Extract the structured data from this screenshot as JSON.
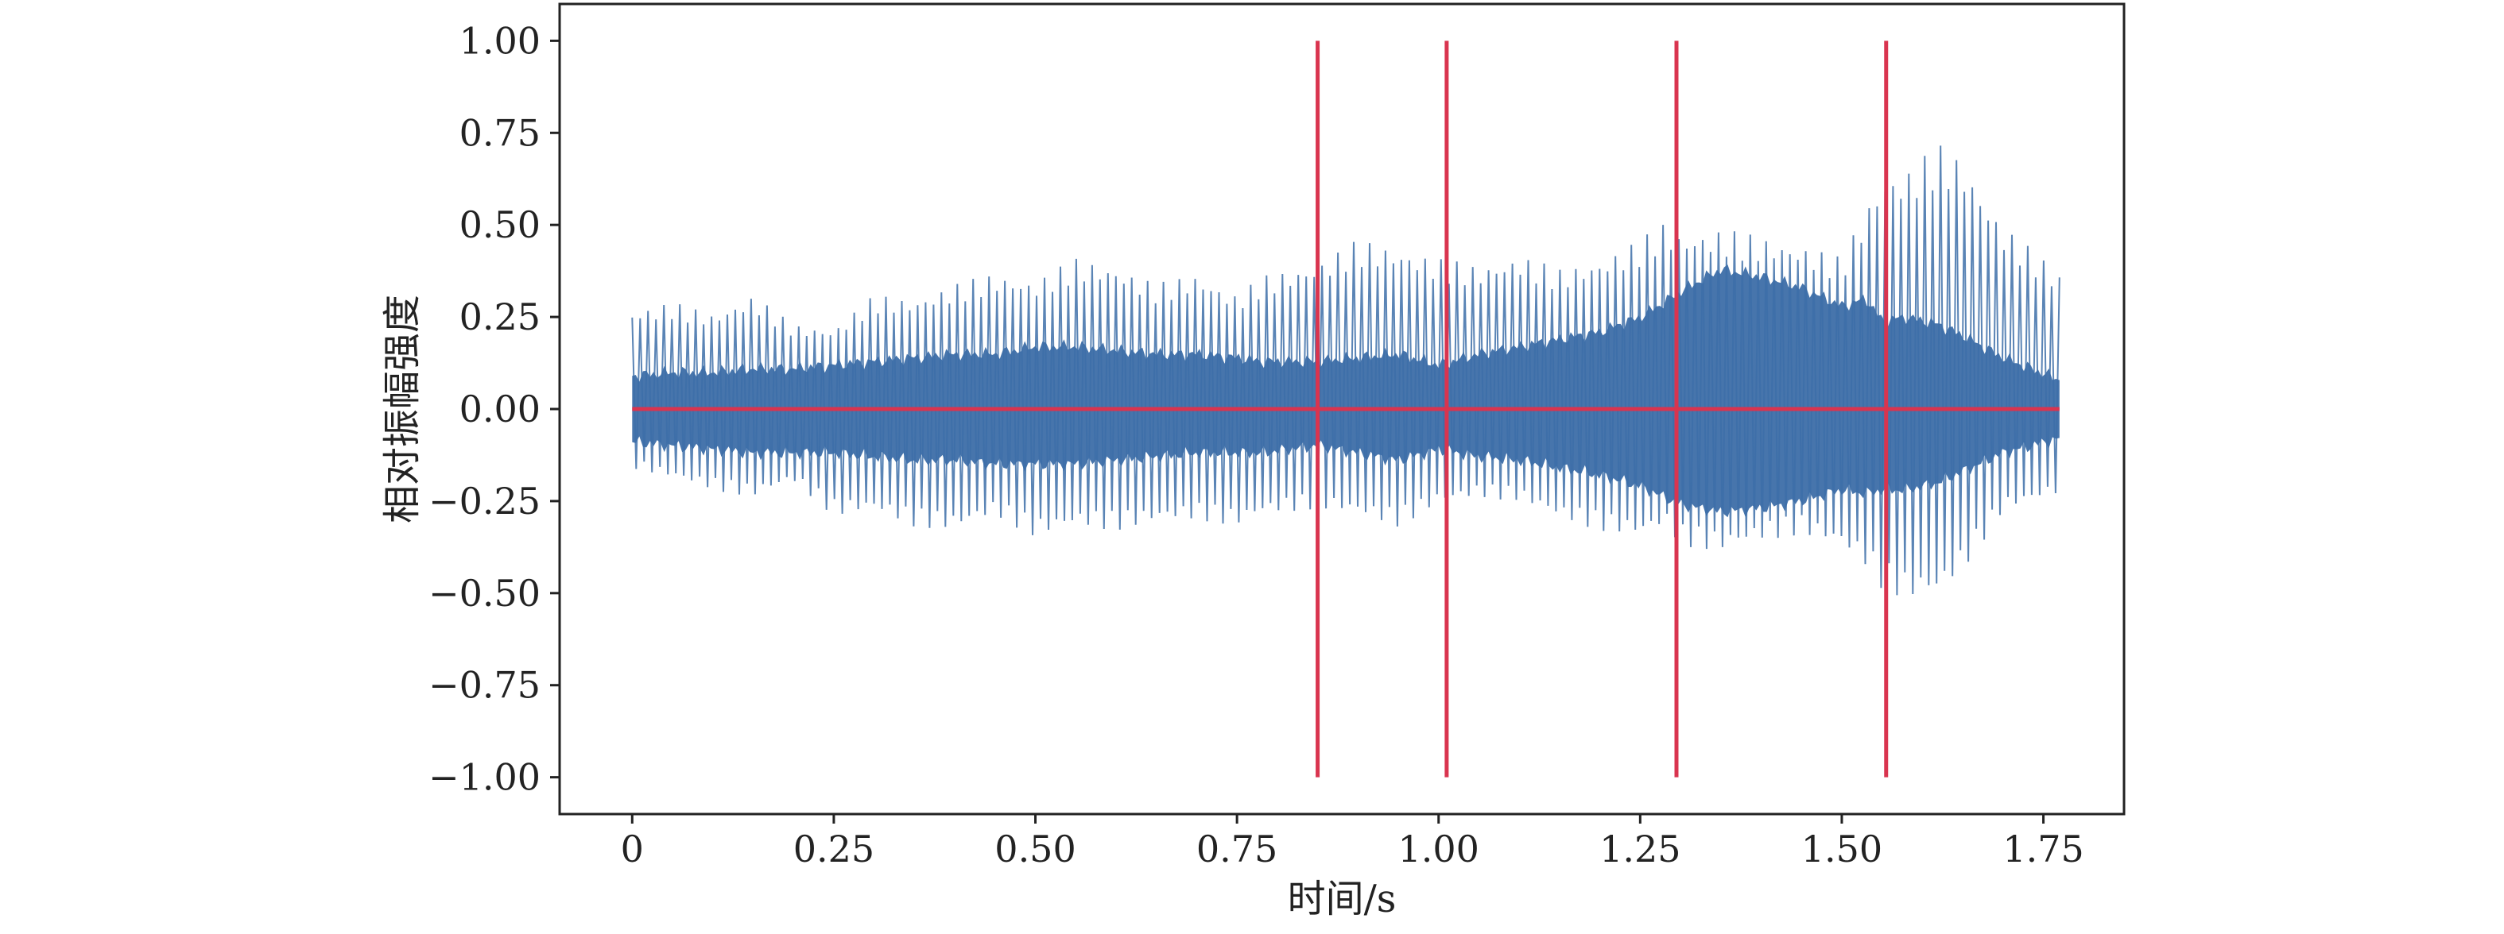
{
  "chart_data": {
    "type": "line",
    "title": "",
    "xlabel": "时间/s",
    "ylabel": "相对振幅强度",
    "xlim": [
      -0.09,
      1.85
    ],
    "ylim": [
      -1.1,
      1.1
    ],
    "xticks": [
      0,
      0.25,
      0.5,
      0.75,
      1.0,
      1.25,
      1.5,
      1.75
    ],
    "xtick_labels": [
      "0",
      "0.25",
      "0.50",
      "0.75",
      "1.00",
      "1.25",
      "1.50",
      "1.75"
    ],
    "yticks": [
      1.0,
      0.75,
      0.5,
      0.25,
      0.0,
      -0.25,
      -0.5,
      -0.75,
      -1.0
    ],
    "ytick_labels": [
      "1.00",
      "0.75",
      "0.50",
      "0.25",
      "0.00",
      "−0.25",
      "−0.50",
      "−0.75",
      "−1.00"
    ],
    "grid": false,
    "series": [
      {
        "color": "#3d6ea8",
        "x": [
          0,
          0.05,
          0.1,
          0.15,
          0.2,
          0.25,
          0.3,
          0.35,
          0.4,
          0.45,
          0.5,
          0.55,
          0.6,
          0.65,
          0.7,
          0.75,
          0.78,
          0.85,
          0.9,
          0.95,
          1.0,
          1.05,
          1.1,
          1.15,
          1.2,
          1.25,
          1.28,
          1.3,
          1.35,
          1.4,
          1.45,
          1.5,
          1.53,
          1.55,
          1.58,
          1.62,
          1.65,
          1.7,
          1.77
        ],
        "peak_upper": [
          0.27,
          0.29,
          0.26,
          0.31,
          0.23,
          0.22,
          0.31,
          0.3,
          0.34,
          0.37,
          0.35,
          0.41,
          0.39,
          0.34,
          0.37,
          0.31,
          0.36,
          0.4,
          0.46,
          0.44,
          0.41,
          0.39,
          0.42,
          0.38,
          0.41,
          0.46,
          0.51,
          0.48,
          0.49,
          0.47,
          0.45,
          0.41,
          0.55,
          0.64,
          0.65,
          0.72,
          0.68,
          0.5,
          0.37
        ],
        "peak_lower": [
          -0.16,
          -0.19,
          -0.22,
          -0.24,
          -0.2,
          -0.29,
          -0.28,
          -0.32,
          -0.33,
          -0.29,
          -0.35,
          -0.32,
          -0.33,
          -0.31,
          -0.3,
          -0.32,
          -0.29,
          -0.27,
          -0.29,
          -0.32,
          -0.26,
          -0.24,
          -0.25,
          -0.3,
          -0.33,
          -0.35,
          -0.32,
          -0.37,
          -0.39,
          -0.36,
          -0.34,
          -0.38,
          -0.43,
          -0.49,
          -0.52,
          -0.51,
          -0.44,
          -0.28,
          -0.23
        ],
        "dense_upper": [
          0.09,
          0.1,
          0.1,
          0.11,
          0.11,
          0.12,
          0.13,
          0.14,
          0.15,
          0.15,
          0.17,
          0.17,
          0.16,
          0.15,
          0.15,
          0.14,
          0.13,
          0.13,
          0.14,
          0.15,
          0.12,
          0.15,
          0.17,
          0.19,
          0.21,
          0.25,
          0.29,
          0.32,
          0.38,
          0.36,
          0.33,
          0.28,
          0.3,
          0.24,
          0.25,
          0.23,
          0.2,
          0.14,
          0.08
        ],
        "dense_lower": [
          -0.09,
          -0.1,
          -0.11,
          -0.12,
          -0.12,
          -0.12,
          -0.13,
          -0.14,
          -0.14,
          -0.15,
          -0.15,
          -0.15,
          -0.14,
          -0.13,
          -0.12,
          -0.12,
          -0.12,
          -0.1,
          -0.12,
          -0.14,
          -0.11,
          -0.13,
          -0.14,
          -0.16,
          -0.18,
          -0.21,
          -0.24,
          -0.26,
          -0.28,
          -0.27,
          -0.25,
          -0.22,
          -0.23,
          -0.22,
          -0.22,
          -0.2,
          -0.17,
          -0.12,
          -0.08
        ],
        "x_start": 0,
        "x_end": 1.77
      }
    ],
    "reference_lines": {
      "color": "#d9344f",
      "horizontal": [
        {
          "y": 0.0,
          "x_start": 0,
          "x_end": 1.77
        }
      ],
      "vertical": [
        {
          "x": 0.85,
          "y_min": -1.0,
          "y_max": 1.0
        },
        {
          "x": 1.01,
          "y_min": -1.0,
          "y_max": 1.0
        },
        {
          "x": 1.295,
          "y_min": -1.0,
          "y_max": 1.0
        },
        {
          "x": 1.555,
          "y_min": -1.0,
          "y_max": 1.0
        }
      ]
    }
  }
}
